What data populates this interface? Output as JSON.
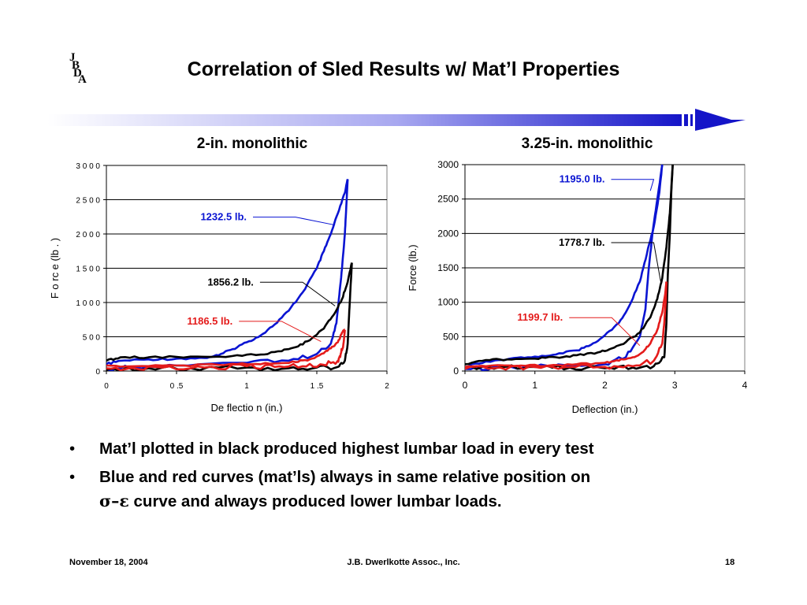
{
  "slide": {
    "title": "Correlation of Sled Results w/ Mat’l Properties",
    "logo_letters": [
      "J",
      "B",
      "D",
      "A"
    ],
    "footer_date": "November 18, 2004",
    "footer_company": "J.B. Dwerlkotte Assoc., Inc.",
    "footer_page": "18",
    "bullets": [
      {
        "symbol": "•",
        "text": "Mat’l plotted in black produced highest lumbar load in every test"
      },
      {
        "symbol": "•",
        "text": "Blue and red curves (mat’ls) always in same relative position on",
        "greek": "σ–ε",
        "text_cont": " curve and always produced lower lumbar loads."
      }
    ],
    "colors": {
      "banner": "#1515c8",
      "blue": "#0a14d2",
      "red": "#e41b1b",
      "black": "#000000"
    }
  },
  "chart_data": [
    {
      "type": "line",
      "title": "2-in. monolithic",
      "xlabel": "De flectio n  (in.)",
      "ylabel": "F o rc e  (lb . )",
      "xlim": [
        0,
        2
      ],
      "ylim": [
        0,
        3000
      ],
      "x_ticks": [
        0,
        0.5,
        1,
        1.5,
        2
      ],
      "x_tick_labels": [
        "0",
        "0 .5",
        "1",
        "1 .5",
        "2"
      ],
      "y_ticks": [
        0,
        500,
        1000,
        1500,
        2000,
        2500,
        3000
      ],
      "y_tick_labels": [
        "0",
        "5 0 0",
        "1 0 0 0",
        "1 5 0 0",
        "2 0 0 0",
        "2 5 0 0",
        "3 0 0 0"
      ],
      "grid": true,
      "series": [
        {
          "color": "blue",
          "loading": [
            [
              0,
              100
            ],
            [
              0.1,
              150
            ],
            [
              0.3,
              170
            ],
            [
              0.5,
              180
            ],
            [
              0.7,
              190
            ],
            [
              0.8,
              230
            ],
            [
              0.9,
              320
            ],
            [
              1.0,
              420
            ],
            [
              1.1,
              520
            ],
            [
              1.2,
              680
            ],
            [
              1.3,
              880
            ],
            [
              1.4,
              1150
            ],
            [
              1.5,
              1500
            ],
            [
              1.55,
              1750
            ],
            [
              1.6,
              2000
            ],
            [
              1.65,
              2300
            ],
            [
              1.7,
              2600
            ],
            [
              1.72,
              2800
            ]
          ],
          "unloading": [
            [
              1.72,
              2800
            ],
            [
              1.71,
              2400
            ],
            [
              1.7,
              2000
            ],
            [
              1.68,
              1500
            ],
            [
              1.66,
              1100
            ],
            [
              1.64,
              700
            ],
            [
              1.6,
              400
            ],
            [
              1.5,
              250
            ],
            [
              1.3,
              150
            ],
            [
              1.0,
              120
            ],
            [
              0.5,
              80
            ],
            [
              0.2,
              60
            ],
            [
              0,
              30
            ]
          ]
        },
        {
          "color": "black",
          "loading": [
            [
              0,
              150
            ],
            [
              0.1,
              200
            ],
            [
              0.3,
              200
            ],
            [
              0.6,
              210
            ],
            [
              0.9,
              220
            ],
            [
              1.1,
              240
            ],
            [
              1.25,
              290
            ],
            [
              1.35,
              350
            ],
            [
              1.45,
              450
            ],
            [
              1.55,
              620
            ],
            [
              1.62,
              820
            ],
            [
              1.68,
              1050
            ],
            [
              1.72,
              1300
            ],
            [
              1.75,
              1580
            ]
          ],
          "unloading": [
            [
              1.75,
              1580
            ],
            [
              1.74,
              1200
            ],
            [
              1.73,
              800
            ],
            [
              1.72,
              400
            ],
            [
              1.7,
              150
            ],
            [
              1.65,
              60
            ],
            [
              1.5,
              50
            ],
            [
              1.3,
              40
            ],
            [
              1.0,
              50
            ],
            [
              0.6,
              40
            ],
            [
              0.3,
              40
            ],
            [
              0,
              20
            ]
          ]
        },
        {
          "color": "red",
          "loading": [
            [
              0,
              80
            ],
            [
              0.2,
              70
            ],
            [
              0.5,
              80
            ],
            [
              0.8,
              90
            ],
            [
              1.0,
              100
            ],
            [
              1.2,
              110
            ],
            [
              1.35,
              130
            ],
            [
              1.45,
              170
            ],
            [
              1.55,
              260
            ],
            [
              1.6,
              330
            ],
            [
              1.65,
              420
            ],
            [
              1.68,
              560
            ],
            [
              1.7,
              600
            ]
          ],
          "unloading": [
            [
              1.7,
              600
            ],
            [
              1.69,
              400
            ],
            [
              1.67,
              250
            ],
            [
              1.65,
              150
            ],
            [
              1.55,
              90
            ],
            [
              1.4,
              70
            ],
            [
              1.2,
              60
            ],
            [
              1.0,
              70
            ],
            [
              0.7,
              50
            ],
            [
              0.4,
              50
            ],
            [
              0.2,
              40
            ],
            [
              0,
              40
            ]
          ]
        }
      ],
      "annotations": [
        {
          "text": "1232.5  lb.",
          "color": "blue",
          "anchor": [
            1.0,
            2200
          ],
          "arrow_end": [
            1.63,
            2130
          ]
        },
        {
          "text": "1856.2  lb.",
          "color": "black",
          "anchor": [
            1.05,
            1250
          ],
          "arrow_end": [
            1.63,
            950
          ]
        },
        {
          "text": "1186.5  lb.",
          "color": "red",
          "anchor": [
            0.9,
            680
          ],
          "arrow_end": [
            1.53,
            430
          ]
        }
      ]
    },
    {
      "type": "line",
      "title": "3.25-in. monolithic",
      "xlabel": "Deflection  (in.)",
      "ylabel": "Force  (lb.)",
      "xlim": [
        0,
        4
      ],
      "ylim": [
        0,
        3000
      ],
      "x_ticks": [
        0,
        1,
        2,
        3,
        4
      ],
      "x_tick_labels": [
        "0",
        "1",
        "2",
        "3",
        "4"
      ],
      "y_ticks": [
        0,
        500,
        1000,
        1500,
        2000,
        2500,
        3000
      ],
      "y_tick_labels": [
        "0",
        "500",
        "1000",
        "1500",
        "2000",
        "2500",
        "3000"
      ],
      "grid": true,
      "series": [
        {
          "color": "blue",
          "loading": [
            [
              0,
              60
            ],
            [
              0.3,
              140
            ],
            [
              0.7,
              190
            ],
            [
              1.0,
              210
            ],
            [
              1.3,
              240
            ],
            [
              1.6,
              300
            ],
            [
              1.8,
              380
            ],
            [
              2.0,
              520
            ],
            [
              2.2,
              700
            ],
            [
              2.35,
              950
            ],
            [
              2.5,
              1300
            ],
            [
              2.6,
              1700
            ],
            [
              2.7,
              2100
            ],
            [
              2.78,
              2600
            ],
            [
              2.82,
              3000
            ]
          ],
          "unloading": [
            [
              2.82,
              3000
            ],
            [
              2.75,
              2500
            ],
            [
              2.68,
              2000
            ],
            [
              2.62,
              1400
            ],
            [
              2.58,
              900
            ],
            [
              2.5,
              500
            ],
            [
              2.3,
              200
            ],
            [
              2.0,
              100
            ],
            [
              1.5,
              70
            ],
            [
              1.0,
              60
            ],
            [
              0.5,
              50
            ],
            [
              0,
              30
            ]
          ]
        },
        {
          "color": "black",
          "loading": [
            [
              0,
              100
            ],
            [
              0.3,
              160
            ],
            [
              0.6,
              170
            ],
            [
              1.0,
              180
            ],
            [
              1.3,
              200
            ],
            [
              1.6,
              230
            ],
            [
              1.9,
              270
            ],
            [
              2.1,
              330
            ],
            [
              2.3,
              420
            ],
            [
              2.5,
              560
            ],
            [
              2.65,
              780
            ],
            [
              2.75,
              1050
            ],
            [
              2.82,
              1350
            ],
            [
              2.88,
              1800
            ],
            [
              2.93,
              2300
            ],
            [
              2.97,
              3000
            ]
          ],
          "unloading": [
            [
              2.97,
              3000
            ],
            [
              2.95,
              2600
            ],
            [
              2.93,
              2000
            ],
            [
              2.9,
              1400
            ],
            [
              2.88,
              700
            ],
            [
              2.85,
              200
            ],
            [
              2.7,
              70
            ],
            [
              2.4,
              50
            ],
            [
              2.0,
              40
            ],
            [
              1.5,
              50
            ],
            [
              1.0,
              60
            ],
            [
              0.5,
              60
            ],
            [
              0,
              40
            ]
          ]
        },
        {
          "color": "red",
          "loading": [
            [
              0,
              60
            ],
            [
              0.3,
              70
            ],
            [
              0.8,
              80
            ],
            [
              1.2,
              80
            ],
            [
              1.6,
              100
            ],
            [
              2.0,
              120
            ],
            [
              2.2,
              150
            ],
            [
              2.4,
              200
            ],
            [
              2.55,
              280
            ],
            [
              2.65,
              400
            ],
            [
              2.75,
              600
            ],
            [
              2.82,
              850
            ],
            [
              2.86,
              1100
            ],
            [
              2.88,
              1300
            ]
          ],
          "unloading": [
            [
              2.88,
              1300
            ],
            [
              2.87,
              1000
            ],
            [
              2.85,
              700
            ],
            [
              2.82,
              400
            ],
            [
              2.7,
              150
            ],
            [
              2.4,
              70
            ],
            [
              2.0,
              60
            ],
            [
              1.5,
              60
            ],
            [
              1.0,
              60
            ],
            [
              0.5,
              50
            ],
            [
              0,
              30
            ]
          ]
        }
      ],
      "annotations": [
        {
          "text": "1195.0  lb.",
          "color": "blue",
          "anchor": [
            2.0,
            2740
          ],
          "arrow_end": [
            2.65,
            2620
          ]
        },
        {
          "text": "1778.7  lb.",
          "color": "black",
          "anchor": [
            2.0,
            1820
          ],
          "arrow_end": [
            2.8,
            1290
          ]
        },
        {
          "text": "1199.7  lb.",
          "color": "red",
          "anchor": [
            1.4,
            730
          ],
          "arrow_end": [
            2.5,
            370
          ]
        }
      ]
    }
  ]
}
